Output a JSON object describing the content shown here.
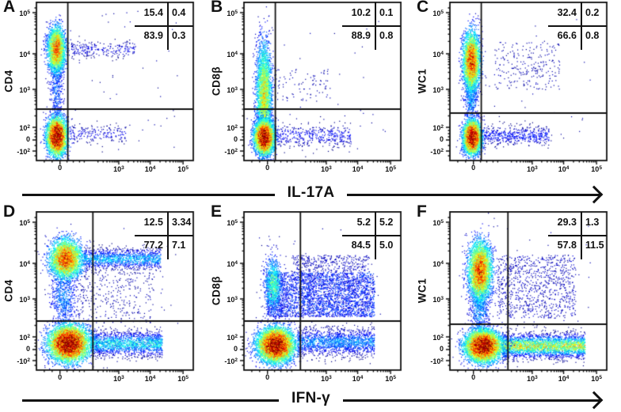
{
  "chart_data": {
    "type": "flow_cytometry_density_scatter_grid",
    "description": "Six pseudocolor flow cytometry dot plots with quadrant gates and percentages",
    "x_arrow_labels": {
      "top_row": "IL-17A",
      "bottom_row": "IFN-γ"
    },
    "axes": {
      "x_ticks": [
        {
          "base": "0",
          "exp": "",
          "frac": 0.15
        },
        {
          "base": "10",
          "exp": "3",
          "frac": 0.525
        },
        {
          "base": "10",
          "exp": "4",
          "frac": 0.725
        },
        {
          "base": "10",
          "exp": "5",
          "frac": 0.935
        }
      ],
      "x_minor_decades": [
        0.335,
        0.525,
        0.725,
        0.935
      ],
      "x_extra_minors": [
        0.05,
        0.1,
        0.195,
        0.235,
        0.275,
        0.305
      ],
      "y_ticks": [
        {
          "base": "10",
          "exp": "5",
          "frac": 0.935
        },
        {
          "base": "10",
          "exp": "4",
          "frac": 0.675
        },
        {
          "base": "10",
          "exp": "3",
          "frac": 0.45
        },
        {
          "base": "10",
          "exp": "2",
          "frac": 0.21
        },
        {
          "base": "0",
          "exp": "",
          "frac": 0.13
        },
        {
          "base": "-10",
          "exp": "2",
          "frac": 0.06
        }
      ],
      "y_minor_decades": [
        0.21,
        0.45,
        0.675,
        0.935
      ],
      "y_extra_minors": [
        0.03,
        0.095,
        0.15,
        0.17,
        0.19,
        0.965
      ]
    },
    "panels": [
      {
        "letter": "A",
        "y_label": "CD4",
        "x_label": "IL-17A",
        "stats": {
          "tl": "15.4",
          "tr": "0.4",
          "bl": "83.9",
          "br": "0.3"
        },
        "gate": {
          "x": 0.2,
          "y": 0.325
        },
        "populations": [
          {
            "kind": "gauss",
            "cx": 0.125,
            "cy": 0.705,
            "sx": 0.027,
            "sy": 0.07,
            "n": 2800,
            "peak": 0.75
          },
          {
            "kind": "gauss",
            "cx": 0.125,
            "cy": 0.45,
            "sx": 0.022,
            "sy": 0.13,
            "n": 420,
            "peak": 0.22
          },
          {
            "kind": "gauss",
            "cx": 0.128,
            "cy": 0.155,
            "sx": 0.03,
            "sy": 0.058,
            "n": 4200,
            "peak": 1.0
          },
          {
            "kind": "band",
            "x0": 0.22,
            "x1": 0.63,
            "cy": 0.705,
            "sy": 0.028,
            "n": 240,
            "peak": 0.1
          },
          {
            "kind": "band",
            "x0": 0.21,
            "x1": 0.57,
            "cy": 0.17,
            "sy": 0.03,
            "n": 190,
            "peak": 0.1
          },
          {
            "kind": "rect",
            "x0": 0.05,
            "x1": 0.9,
            "y0": 0.05,
            "y1": 0.95,
            "n": 50,
            "peak": 0.04
          }
        ]
      },
      {
        "letter": "B",
        "y_label": "CD8β",
        "x_label": "IL-17A",
        "stats": {
          "tl": "10.2",
          "tr": "0.1",
          "bl": "88.9",
          "br": "0.8"
        },
        "gate": {
          "x": 0.2,
          "y": 0.325
        },
        "populations": [
          {
            "kind": "gauss",
            "cx": 0.125,
            "cy": 0.42,
            "sx": 0.024,
            "sy": 0.16,
            "n": 3200,
            "peak": 0.6
          },
          {
            "kind": "gauss",
            "cx": 0.127,
            "cy": 0.15,
            "sx": 0.03,
            "sy": 0.052,
            "n": 4500,
            "peak": 1.0
          },
          {
            "kind": "band",
            "x0": 0.2,
            "x1": 0.68,
            "cy": 0.16,
            "sy": 0.038,
            "n": 420,
            "peak": 0.12
          },
          {
            "kind": "rect",
            "x0": 0.2,
            "x1": 0.55,
            "y0": 0.38,
            "y1": 0.58,
            "n": 90,
            "peak": 0.05
          },
          {
            "kind": "rect",
            "x0": 0.05,
            "x1": 0.9,
            "y0": 0.05,
            "y1": 0.9,
            "n": 40,
            "peak": 0.04
          }
        ]
      },
      {
        "letter": "C",
        "y_label": "WC1",
        "x_label": "IL-17A",
        "stats": {
          "tl": "32.4",
          "tr": "0.2",
          "bl": "66.6",
          "br": "0.8"
        },
        "gate": {
          "x": 0.2,
          "y": 0.3
        },
        "populations": [
          {
            "kind": "gauss",
            "cx": 0.135,
            "cy": 0.63,
            "sx": 0.026,
            "sy": 0.09,
            "n": 3400,
            "peak": 0.8
          },
          {
            "kind": "gauss",
            "cx": 0.132,
            "cy": 0.42,
            "sx": 0.021,
            "sy": 0.1,
            "n": 550,
            "peak": 0.3
          },
          {
            "kind": "gauss",
            "cx": 0.14,
            "cy": 0.15,
            "sx": 0.027,
            "sy": 0.05,
            "n": 4200,
            "peak": 1.0
          },
          {
            "kind": "band",
            "x0": 0.2,
            "x1": 0.63,
            "cy": 0.16,
            "sy": 0.032,
            "n": 520,
            "peak": 0.14
          },
          {
            "kind": "rect",
            "x0": 0.28,
            "x1": 0.7,
            "y0": 0.45,
            "y1": 0.75,
            "n": 240,
            "peak": 0.05
          },
          {
            "kind": "rect",
            "x0": 0.05,
            "x1": 0.9,
            "y0": 0.05,
            "y1": 0.9,
            "n": 40,
            "peak": 0.04
          }
        ]
      },
      {
        "letter": "D",
        "y_label": "CD4",
        "x_label": "IFN-γ",
        "stats": {
          "tl": "12.5",
          "tr": "3.34",
          "bl": "77.2",
          "br": "7.1"
        },
        "gate": {
          "x": 0.36,
          "y": 0.31
        },
        "populations": [
          {
            "kind": "gauss",
            "cx": 0.185,
            "cy": 0.705,
            "sx": 0.05,
            "sy": 0.06,
            "n": 3400,
            "peak": 0.8
          },
          {
            "kind": "gauss",
            "cx": 0.17,
            "cy": 0.46,
            "sx": 0.042,
            "sy": 0.1,
            "n": 650,
            "peak": 0.25
          },
          {
            "kind": "gauss",
            "cx": 0.205,
            "cy": 0.17,
            "sx": 0.062,
            "sy": 0.055,
            "n": 6500,
            "peak": 1.0
          },
          {
            "kind": "band",
            "x0": 0.3,
            "x1": 0.79,
            "cy": 0.705,
            "sy": 0.033,
            "n": 1300,
            "peak": 0.3
          },
          {
            "kind": "band",
            "x0": 0.34,
            "x1": 0.8,
            "cy": 0.17,
            "sy": 0.04,
            "n": 1700,
            "peak": 0.35
          },
          {
            "kind": "rect",
            "x0": 0.25,
            "x1": 0.75,
            "y0": 0.3,
            "y1": 0.62,
            "n": 300,
            "peak": 0.05
          },
          {
            "kind": "rect",
            "x0": 0.05,
            "x1": 0.9,
            "y0": 0.05,
            "y1": 0.92,
            "n": 60,
            "peak": 0.04
          }
        ]
      },
      {
        "letter": "E",
        "y_label": "CD8β",
        "x_label": "IFN-γ",
        "stats": {
          "tl": "5.2",
          "tr": "5.2",
          "bl": "84.5",
          "br": "5.0"
        },
        "gate": {
          "x": 0.36,
          "y": 0.31
        },
        "populations": [
          {
            "kind": "gauss",
            "cx": 0.2,
            "cy": 0.16,
            "sx": 0.055,
            "sy": 0.052,
            "n": 6500,
            "peak": 1.0
          },
          {
            "kind": "gauss",
            "cx": 0.185,
            "cy": 0.54,
            "sx": 0.028,
            "sy": 0.085,
            "n": 900,
            "peak": 0.45
          },
          {
            "kind": "rect",
            "x0": 0.14,
            "x1": 0.83,
            "y0": 0.34,
            "y1": 0.62,
            "n": 3200,
            "peak": 0.16
          },
          {
            "kind": "band",
            "x0": 0.34,
            "x1": 0.83,
            "cy": 0.18,
            "sy": 0.045,
            "n": 1600,
            "peak": 0.25
          },
          {
            "kind": "rect",
            "x0": 0.3,
            "x1": 0.8,
            "y0": 0.62,
            "y1": 0.73,
            "n": 350,
            "peak": 0.07
          },
          {
            "kind": "rect",
            "x0": 0.05,
            "x1": 0.9,
            "y0": 0.05,
            "y1": 0.92,
            "n": 60,
            "peak": 0.04
          }
        ]
      },
      {
        "letter": "F",
        "y_label": "WC1",
        "x_label": "IFN-γ",
        "stats": {
          "tl": "29.3",
          "tr": "1.3",
          "bl": "57.8",
          "br": "11.5"
        },
        "gate": {
          "x": 0.37,
          "y": 0.29
        },
        "populations": [
          {
            "kind": "gauss",
            "cx": 0.19,
            "cy": 0.63,
            "sx": 0.036,
            "sy": 0.09,
            "n": 4000,
            "peak": 0.8
          },
          {
            "kind": "gauss",
            "cx": 0.185,
            "cy": 0.42,
            "sx": 0.03,
            "sy": 0.09,
            "n": 600,
            "peak": 0.3
          },
          {
            "kind": "gauss",
            "cx": 0.21,
            "cy": 0.155,
            "sx": 0.055,
            "sy": 0.048,
            "n": 6500,
            "peak": 1.0
          },
          {
            "kind": "band",
            "x0": 0.33,
            "x1": 0.86,
            "cy": 0.155,
            "sy": 0.038,
            "n": 3000,
            "peak": 0.55
          },
          {
            "kind": "rect",
            "x0": 0.3,
            "x1": 0.8,
            "y0": 0.33,
            "y1": 0.73,
            "n": 900,
            "peak": 0.07
          },
          {
            "kind": "rect",
            "x0": 0.05,
            "x1": 0.9,
            "y0": 0.05,
            "y1": 0.92,
            "n": 60,
            "peak": 0.04
          }
        ]
      }
    ],
    "colors": {
      "background": "#ffffff",
      "axis_and_text": "#111111",
      "density_scale": "jet (blue sparse → cyan → green → yellow → red dense)"
    }
  }
}
